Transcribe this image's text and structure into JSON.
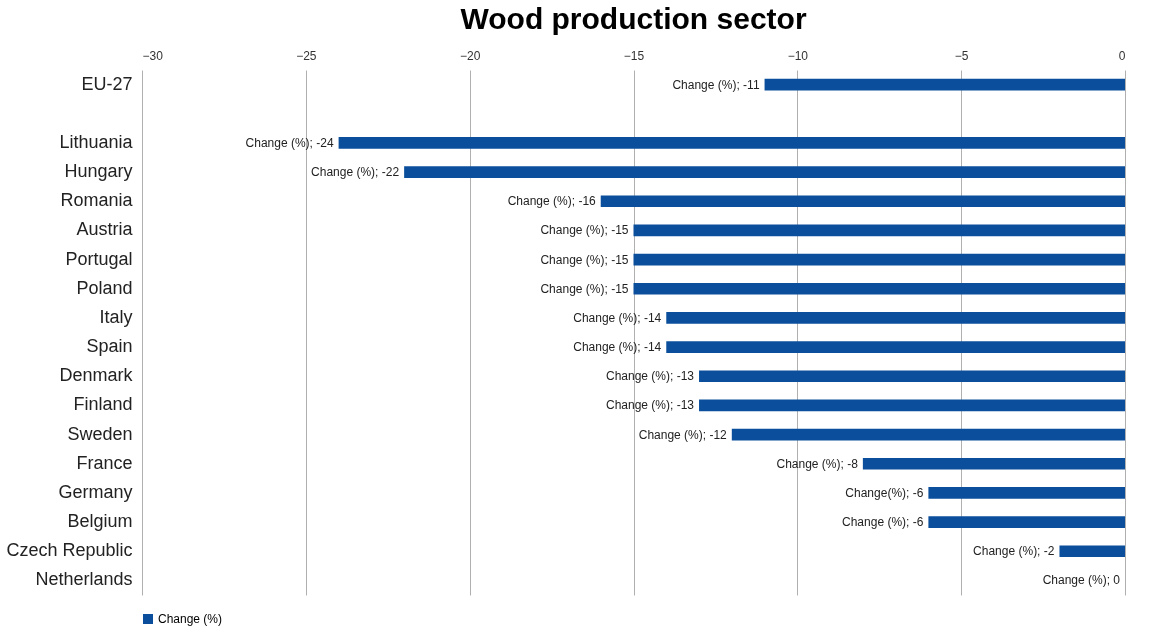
{
  "chart_data": {
    "type": "bar",
    "title": "Wood production sector",
    "orientation": "horizontal",
    "categories": [
      "EU-27",
      null,
      "Lithuania",
      "Hungary",
      "Romania",
      "Austria",
      "Portugal",
      "Poland",
      "Italy",
      "Spain",
      "Denmark",
      "Finland",
      "Sweden",
      "France",
      "Germany",
      "Belgium",
      "Czech Republic",
      "Netherlands"
    ],
    "series": [
      {
        "name": "Change (%)",
        "color": "#0b4f9c",
        "values": [
          -11,
          null,
          -24,
          -22,
          -16,
          -15,
          -15,
          -15,
          -14,
          -14,
          -13,
          -13,
          -12,
          -8,
          -6,
          -6,
          -2,
          0
        ],
        "value_labels": [
          "Change (%); -11",
          null,
          "Change (%); -24",
          "Change (%); -22",
          "Change (%); -16",
          "Change (%); -15",
          "Change (%); -15",
          "Change (%); -15",
          "Change (%); -14",
          "Change (%); -14",
          "Change (%); -13",
          "Change (%); -13",
          "Change (%); -12",
          "Change (%); -8",
          "Change(%); -6",
          "Change (%); -6",
          "Change (%); -2",
          "Change (%); 0"
        ]
      }
    ],
    "xlim": [
      -30,
      0
    ],
    "xticks": [
      -30,
      -25,
      -20,
      -15,
      -10,
      -5,
      0
    ],
    "grid": true,
    "legend": "bottom"
  }
}
